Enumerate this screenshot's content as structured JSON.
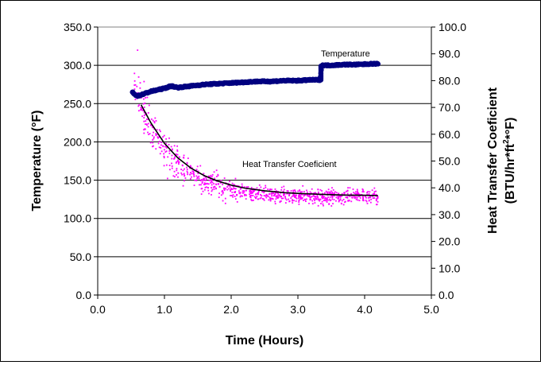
{
  "chart_data": {
    "type": "scatter",
    "xlabel": "Time (Hours)",
    "ylabel": "Temperature (°F)",
    "y2label_line1": "Heat Transfer Coeficient",
    "y2label_line2": "(BTU/hr*ft",
    "y2label_sup": "2",
    "y2label_line2_end": "*°F)",
    "xlim": [
      0.0,
      5.0
    ],
    "ylim": [
      0.0,
      350.0
    ],
    "y2lim": [
      0.0,
      100.0
    ],
    "x_ticks": [
      "0.0",
      "1.0",
      "2.0",
      "3.0",
      "4.0",
      "5.0"
    ],
    "y_ticks": [
      "0.0",
      "50.0",
      "100.0",
      "150.0",
      "200.0",
      "250.0",
      "300.0",
      "350.0"
    ],
    "y2_ticks": [
      "0.0",
      "10.0",
      "20.0",
      "30.0",
      "40.0",
      "50.0",
      "60.0",
      "70.0",
      "80.0",
      "90.0",
      "100.0"
    ],
    "grid": "horizontal",
    "annotations": [
      {
        "text": "Temperature",
        "series": "temperature"
      },
      {
        "text": "Heat Transfer Coeficient",
        "series": "htc"
      }
    ],
    "series": [
      {
        "id": "temperature",
        "axis": "left",
        "color": "#000080",
        "style": "markers",
        "x": [
          0.52,
          0.55,
          0.6,
          0.7,
          0.8,
          0.9,
          1.0,
          1.1,
          1.2,
          1.4,
          1.6,
          1.8,
          2.0,
          2.2,
          2.4,
          2.6,
          2.8,
          3.0,
          3.2,
          3.33,
          3.36,
          3.5,
          3.7,
          3.9,
          4.1,
          4.2
        ],
        "y": [
          265,
          262,
          260,
          263,
          266,
          268,
          270,
          273,
          271,
          273,
          275,
          276,
          277,
          278,
          279,
          279,
          280,
          280,
          281,
          281,
          300,
          300,
          301,
          301,
          302,
          302
        ]
      },
      {
        "id": "htc",
        "axis": "right",
        "color": "#ff00ff",
        "style": "dots",
        "noise_seed": 7,
        "x_start": 0.55,
        "x_end": 4.2,
        "count": 900
      },
      {
        "id": "htc_fit",
        "axis": "right",
        "color": "#000000",
        "style": "line",
        "x": [
          0.65,
          0.8,
          1.0,
          1.2,
          1.4,
          1.6,
          1.8,
          2.0,
          2.2,
          2.5,
          2.8,
          3.1,
          3.4,
          3.7,
          4.0,
          4.2
        ],
        "y": [
          71.0,
          64.1,
          56.6,
          51.2,
          47.3,
          44.5,
          42.5,
          41.0,
          39.9,
          38.9,
          38.2,
          37.8,
          37.5,
          37.3,
          37.2,
          37.1
        ]
      }
    ]
  }
}
